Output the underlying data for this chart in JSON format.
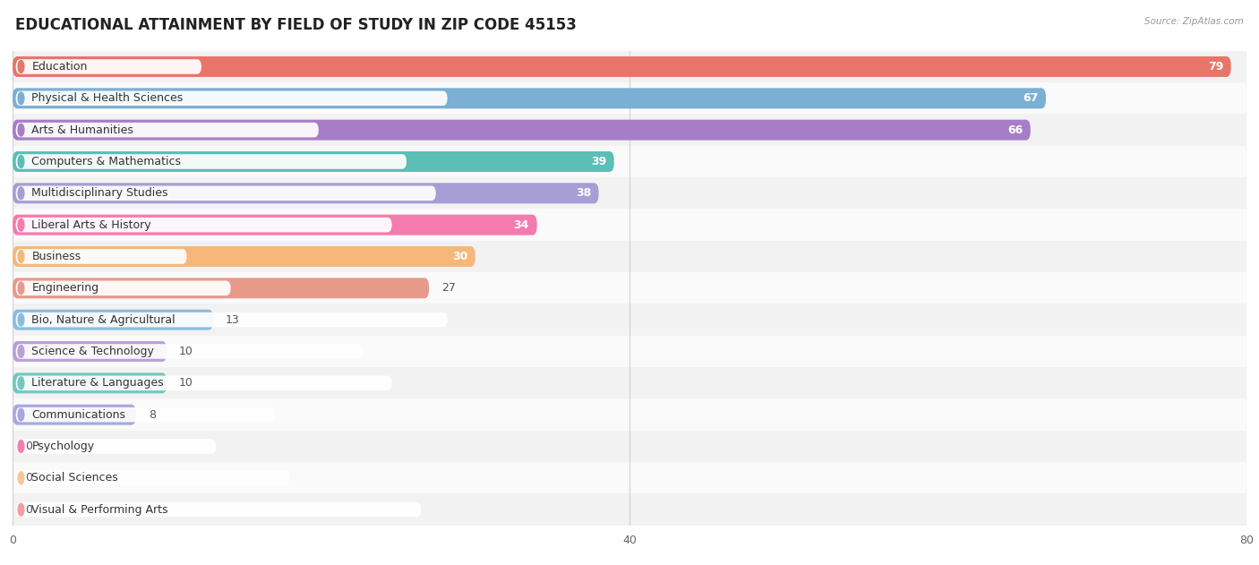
{
  "title": "EDUCATIONAL ATTAINMENT BY FIELD OF STUDY IN ZIP CODE 45153",
  "source": "Source: ZipAtlas.com",
  "categories": [
    "Education",
    "Physical & Health Sciences",
    "Arts & Humanities",
    "Computers & Mathematics",
    "Multidisciplinary Studies",
    "Liberal Arts & History",
    "Business",
    "Engineering",
    "Bio, Nature & Agricultural",
    "Science & Technology",
    "Literature & Languages",
    "Communications",
    "Psychology",
    "Social Sciences",
    "Visual & Performing Arts"
  ],
  "values": [
    79,
    67,
    66,
    39,
    38,
    34,
    30,
    27,
    13,
    10,
    10,
    8,
    0,
    0,
    0
  ],
  "bar_colors": [
    "#E8756A",
    "#7BAFD4",
    "#A87DC8",
    "#5BBFB5",
    "#A89DD4",
    "#F57AAE",
    "#F5B87A",
    "#E89A8A",
    "#8ABDE0",
    "#B8A0D8",
    "#72C8BE",
    "#A8A8E0",
    "#F580B0",
    "#F5C89A",
    "#F0A0A0"
  ],
  "dot_colors": [
    "#E8756A",
    "#7BAFD4",
    "#A87DC8",
    "#5BBFB5",
    "#A89DD4",
    "#F57AAE",
    "#F5B87A",
    "#E89A8A",
    "#8ABDE0",
    "#B8A0D8",
    "#72C8BE",
    "#A8A8E0",
    "#F580B0",
    "#F5C89A",
    "#F0A0A0"
  ],
  "row_colors": [
    "#f2f2f2",
    "#fafafa"
  ],
  "xlim": [
    0,
    80
  ],
  "xticks": [
    0,
    40,
    80
  ],
  "bar_height": 0.65,
  "value_label_inside_threshold": 30,
  "title_fontsize": 12,
  "label_fontsize": 9,
  "value_fontsize": 9
}
